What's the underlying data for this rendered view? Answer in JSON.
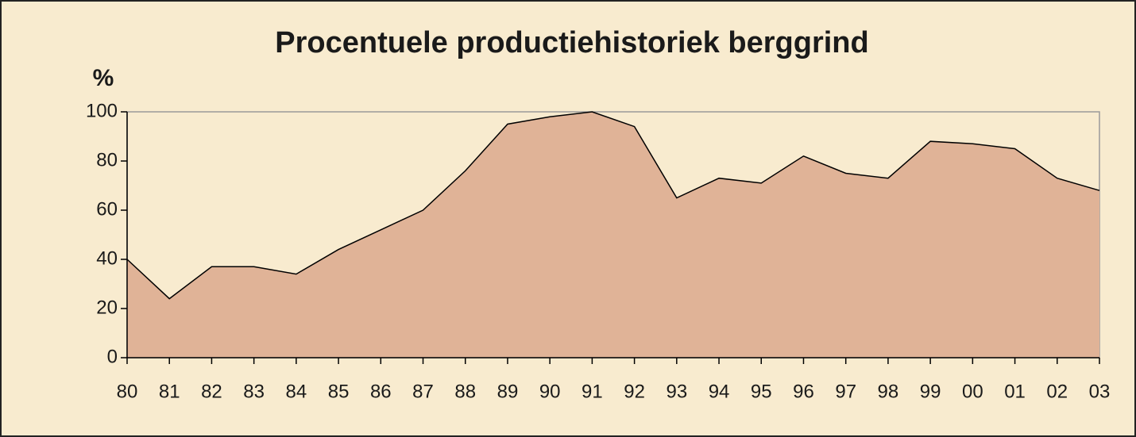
{
  "chart_data": {
    "type": "area",
    "title": "Procentuele productiehistoriek berggrind",
    "y_label": "%",
    "categories": [
      "80",
      "81",
      "82",
      "83",
      "84",
      "85",
      "86",
      "87",
      "88",
      "89",
      "90",
      "91",
      "92",
      "93",
      "94",
      "95",
      "96",
      "97",
      "98",
      "99",
      "00",
      "01",
      "02",
      "03"
    ],
    "values": [
      40,
      24,
      37,
      37,
      34,
      44,
      52,
      60,
      76,
      95,
      98,
      100,
      94,
      65,
      73,
      71,
      82,
      75,
      73,
      88,
      87,
      85,
      73,
      68
    ],
    "color": "#e0b397",
    "line_color": "#000000",
    "ylim": [
      0,
      100
    ],
    "yticks": [
      0,
      20,
      40,
      60,
      80,
      100
    ],
    "grid": false
  }
}
